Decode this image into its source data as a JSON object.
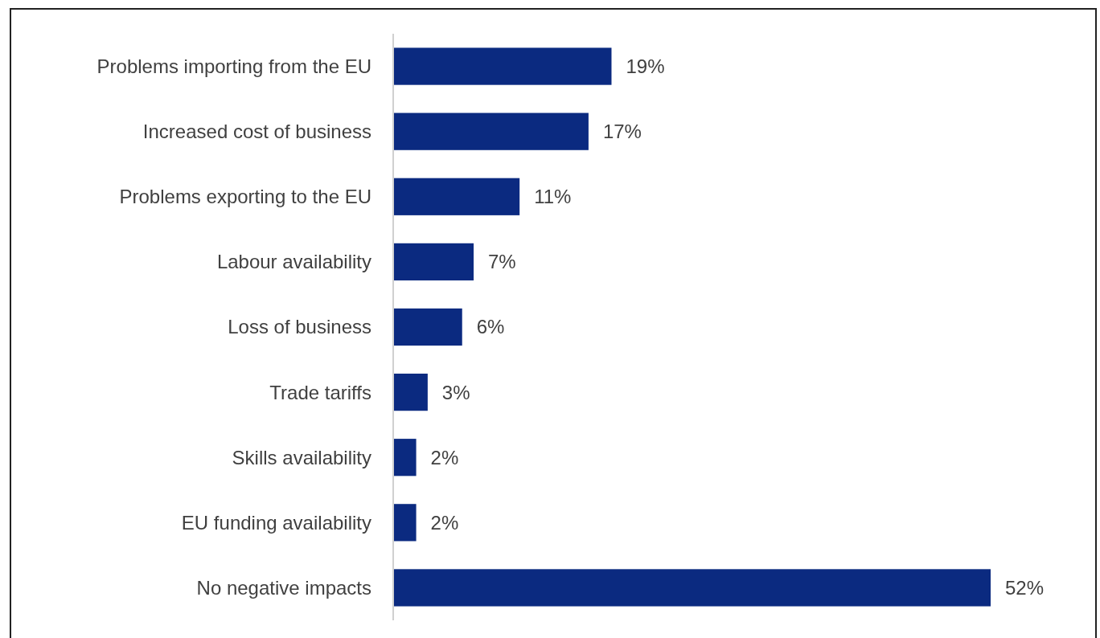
{
  "chart_data": {
    "type": "bar",
    "orientation": "horizontal",
    "categories": [
      "Problems importing from the EU",
      "Increased cost of business",
      "Problems exporting to the EU",
      "Labour availability",
      "Loss of business",
      "Trade tariffs",
      "Skills availability",
      "EU funding availability",
      "No negative impacts"
    ],
    "values": [
      19,
      17,
      11,
      7,
      6,
      3,
      2,
      2,
      52
    ],
    "value_labels": [
      "19%",
      "17%",
      "11%",
      "7%",
      "6%",
      "3%",
      "2%",
      "2%",
      "52%"
    ],
    "color": "#0b2a80"
  }
}
